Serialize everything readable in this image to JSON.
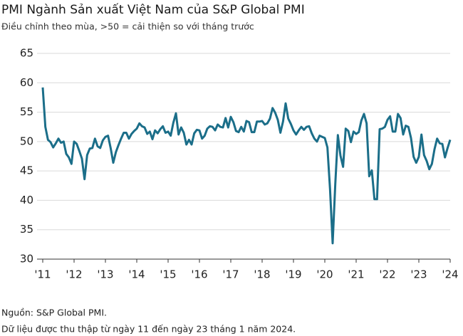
{
  "chart_data": {
    "type": "line",
    "title": "PMI Ngành Sản xuất Việt Nam của S&P Global PMI",
    "subtitle": "Điều chỉnh theo mùa, >50 = cải thiện so với tháng trước",
    "source": "Nguồn: S&P Global PMI.",
    "note": "Dữ liệu được thu thập từ ngày 11 đến ngày 23 tháng 1 năm 2024.",
    "categories": [
      "'11",
      null,
      null,
      null,
      null,
      null,
      null,
      null,
      null,
      null,
      null,
      null,
      "'12",
      null,
      null,
      null,
      null,
      null,
      null,
      null,
      null,
      null,
      null,
      null,
      "'13",
      null,
      null,
      null,
      null,
      null,
      null,
      null,
      null,
      null,
      null,
      null,
      "'14",
      null,
      null,
      null,
      null,
      null,
      null,
      null,
      null,
      null,
      null,
      null,
      "'15",
      null,
      null,
      null,
      null,
      null,
      null,
      null,
      null,
      null,
      null,
      null,
      "'16",
      null,
      null,
      null,
      null,
      null,
      null,
      null,
      null,
      null,
      null,
      null,
      "'17",
      null,
      null,
      null,
      null,
      null,
      null,
      null,
      null,
      null,
      null,
      null,
      "'18",
      null,
      null,
      null,
      null,
      null,
      null,
      null,
      null,
      null,
      null,
      null,
      "'19",
      null,
      null,
      null,
      null,
      null,
      null,
      null,
      null,
      null,
      null,
      null,
      "'20",
      null,
      null,
      null,
      null,
      null,
      null,
      null,
      null,
      null,
      null,
      null,
      "'21",
      null,
      null,
      null,
      null,
      null,
      null,
      null,
      null,
      null,
      null,
      null,
      "'22",
      null,
      null,
      null,
      null,
      null,
      null,
      null,
      null,
      null,
      null,
      null,
      "'23",
      null,
      null,
      null,
      null,
      null,
      null,
      null,
      null,
      null,
      null,
      null,
      "'24"
    ],
    "values": [
      59.2,
      52.5,
      50.3,
      49.9,
      49.0,
      49.7,
      50.5,
      49.8,
      50.0,
      47.9,
      47.3,
      46.2,
      50.0,
      49.6,
      48.4,
      47.1,
      43.6,
      47.7,
      48.8,
      48.9,
      50.5,
      49.2,
      48.9,
      50.2,
      50.8,
      51.0,
      48.9,
      46.4,
      48.2,
      49.4,
      50.5,
      51.5,
      51.5,
      50.5,
      51.3,
      51.8,
      52.2,
      53.1,
      52.6,
      52.4,
      51.3,
      51.7,
      50.4,
      51.9,
      51.4,
      52.1,
      52.6,
      51.5,
      51.7,
      51.0,
      53.2,
      54.8,
      51.2,
      52.4,
      51.5,
      49.5,
      50.3,
      49.5,
      51.4,
      52.0,
      51.9,
      50.5,
      51.0,
      52.2,
      52.6,
      52.5,
      51.9,
      52.9,
      52.5,
      52.4,
      54.0,
      52.4,
      54.2,
      53.3,
      51.8,
      51.6,
      52.5,
      51.7,
      53.5,
      53.3,
      51.6,
      51.6,
      53.4,
      53.4,
      53.5,
      52.9,
      53.1,
      53.9,
      55.7,
      54.9,
      53.7,
      51.5,
      53.4,
      56.5,
      53.9,
      53.0,
      51.9,
      51.2,
      51.9,
      52.5,
      52.0,
      52.5,
      52.6,
      51.4,
      50.5,
      50.0,
      51.0,
      50.8,
      50.6,
      49.0,
      41.9,
      32.7,
      42.7,
      51.1,
      47.6,
      45.7,
      52.2,
      51.8,
      49.9,
      51.7,
      51.3,
      51.6,
      53.6,
      54.7,
      53.1,
      44.1,
      45.1,
      40.2,
      40.2,
      52.1,
      52.2,
      52.5,
      53.7,
      54.3,
      51.7,
      51.7,
      54.7,
      54.0,
      51.2,
      52.7,
      52.5,
      50.6,
      47.4,
      46.4,
      47.4,
      51.2,
      47.7,
      46.7,
      45.3,
      46.2,
      48.7,
      50.5,
      49.7,
      49.6,
      47.3,
      48.9,
      50.3
    ],
    "color": "#1b6e89",
    "ylim": [
      30,
      65
    ],
    "yticks": [
      30,
      35,
      40,
      45,
      50,
      55,
      60,
      65
    ],
    "grid": true
  }
}
